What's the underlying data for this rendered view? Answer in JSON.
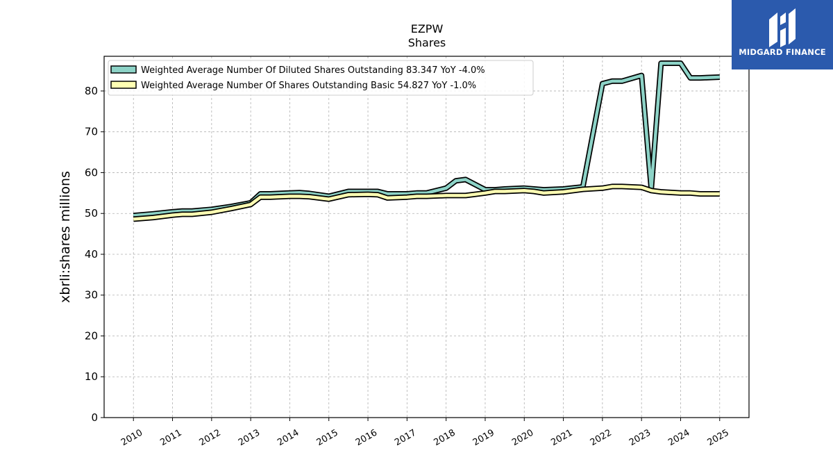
{
  "chart_data": {
    "type": "line",
    "title": "EZPW",
    "subtitle": "Shares",
    "xlabel": "",
    "ylabel": "xbrli:shares millions",
    "ylim": [
      0,
      88.5
    ],
    "xlim": [
      2009.25,
      2025.75
    ],
    "yticks": [
      0,
      10,
      20,
      30,
      40,
      50,
      60,
      70,
      80
    ],
    "xticks": [
      2010,
      2011,
      2012,
      2013,
      2014,
      2015,
      2016,
      2017,
      2018,
      2019,
      2020,
      2021,
      2022,
      2023,
      2024,
      2025
    ],
    "grid": true,
    "legend_position": "top-left",
    "series": [
      {
        "name": "Weighted Average Number Of Diluted Shares Outstanding  83.347 YoY -4.0%",
        "color": "#8dd3c7",
        "points": [
          [
            2010.0,
            49.5
          ],
          [
            2010.5,
            49.9
          ],
          [
            2011.0,
            50.4
          ],
          [
            2011.25,
            50.6
          ],
          [
            2011.5,
            50.6
          ],
          [
            2012.0,
            51.0
          ],
          [
            2012.5,
            51.7
          ],
          [
            2013.0,
            52.6
          ],
          [
            2013.25,
            54.8
          ],
          [
            2013.5,
            54.8
          ],
          [
            2014.0,
            55.0
          ],
          [
            2014.25,
            55.1
          ],
          [
            2014.5,
            54.9
          ],
          [
            2015.0,
            54.2
          ],
          [
            2015.5,
            55.4
          ],
          [
            2016.0,
            55.4
          ],
          [
            2016.25,
            55.4
          ],
          [
            2016.5,
            54.8
          ],
          [
            2017.0,
            54.8
          ],
          [
            2017.25,
            55.0
          ],
          [
            2017.5,
            55.0
          ],
          [
            2018.0,
            56.2
          ],
          [
            2018.25,
            58.0
          ],
          [
            2018.5,
            58.3
          ],
          [
            2019.0,
            55.8
          ],
          [
            2019.25,
            55.8
          ],
          [
            2019.5,
            56.0
          ],
          [
            2020.0,
            56.2
          ],
          [
            2020.25,
            56.0
          ],
          [
            2020.5,
            55.8
          ],
          [
            2021.0,
            56.0
          ],
          [
            2021.5,
            56.5
          ],
          [
            2022.0,
            81.8
          ],
          [
            2022.25,
            82.4
          ],
          [
            2022.5,
            82.4
          ],
          [
            2023.0,
            83.8
          ],
          [
            2023.25,
            56.0
          ],
          [
            2023.5,
            86.8
          ],
          [
            2024.0,
            86.8
          ],
          [
            2024.25,
            83.2
          ],
          [
            2024.5,
            83.2
          ],
          [
            2025.0,
            83.4
          ]
        ]
      },
      {
        "name": "Weighted Average Number Of Shares Outstanding Basic  54.827 YoY -1.0%",
        "color": "#ffffb3",
        "points": [
          [
            2010.0,
            48.6
          ],
          [
            2010.5,
            49.0
          ],
          [
            2011.0,
            49.6
          ],
          [
            2011.25,
            49.8
          ],
          [
            2011.5,
            49.8
          ],
          [
            2012.0,
            50.3
          ],
          [
            2012.5,
            51.2
          ],
          [
            2013.0,
            52.2
          ],
          [
            2013.25,
            54.0
          ],
          [
            2013.5,
            54.0
          ],
          [
            2014.0,
            54.2
          ],
          [
            2014.25,
            54.2
          ],
          [
            2014.5,
            54.1
          ],
          [
            2015.0,
            53.5
          ],
          [
            2015.5,
            54.6
          ],
          [
            2016.0,
            54.7
          ],
          [
            2016.25,
            54.6
          ],
          [
            2016.5,
            53.8
          ],
          [
            2017.0,
            54.0
          ],
          [
            2017.25,
            54.2
          ],
          [
            2017.5,
            54.2
          ],
          [
            2018.0,
            54.4
          ],
          [
            2018.25,
            54.4
          ],
          [
            2018.5,
            54.4
          ],
          [
            2019.0,
            55.0
          ],
          [
            2019.25,
            55.4
          ],
          [
            2019.5,
            55.4
          ],
          [
            2020.0,
            55.6
          ],
          [
            2020.25,
            55.4
          ],
          [
            2020.5,
            55.0
          ],
          [
            2021.0,
            55.3
          ],
          [
            2021.5,
            55.9
          ],
          [
            2022.0,
            56.2
          ],
          [
            2022.25,
            56.6
          ],
          [
            2022.5,
            56.6
          ],
          [
            2023.0,
            56.4
          ],
          [
            2023.25,
            55.6
          ],
          [
            2023.5,
            55.3
          ],
          [
            2024.0,
            55.0
          ],
          [
            2024.25,
            55.0
          ],
          [
            2024.5,
            54.8
          ],
          [
            2025.0,
            54.8
          ]
        ]
      }
    ]
  },
  "branding": {
    "name": "MIDGARD FINANCE",
    "icon": "midgard-finance-logo-icon",
    "color": "#2b5aad"
  }
}
